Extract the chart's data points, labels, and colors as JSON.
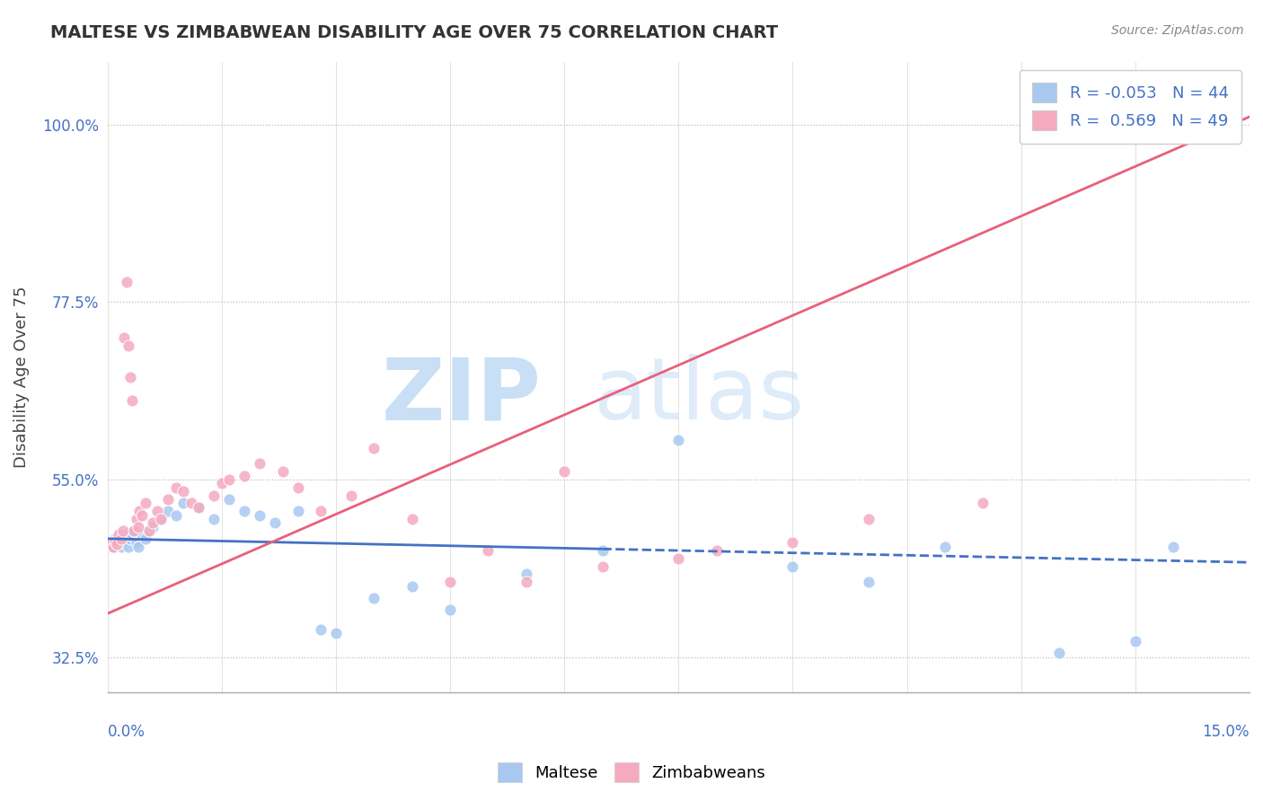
{
  "title": "MALTESE VS ZIMBABWEAN DISABILITY AGE OVER 75 CORRELATION CHART",
  "source": "Source: ZipAtlas.com",
  "ylabel": "Disability Age Over 75",
  "xlim": [
    0.0,
    15.0
  ],
  "ylim": [
    28.0,
    108.0
  ],
  "yticks": [
    32.5,
    55.0,
    77.5,
    100.0
  ],
  "ytick_labels": [
    "32.5%",
    "55.0%",
    "77.5%",
    "100.0%"
  ],
  "legend_r_maltese": "-0.053",
  "legend_n_maltese": "44",
  "legend_r_zimbabwean": "0.569",
  "legend_n_zimbabwean": "49",
  "maltese_color": "#a8c8f0",
  "zimbabwean_color": "#f5aac0",
  "trend_maltese_color": "#4472c4",
  "trend_zimbabwean_color": "#e8607a",
  "maltese_x": [
    0.05,
    0.08,
    0.1,
    0.12,
    0.15,
    0.18,
    0.2,
    0.22,
    0.25,
    0.28,
    0.3,
    0.32,
    0.35,
    0.38,
    0.4,
    0.45,
    0.5,
    0.55,
    0.6,
    0.7,
    0.8,
    0.9,
    1.0,
    1.2,
    1.4,
    1.6,
    1.8,
    2.0,
    2.2,
    2.5,
    2.8,
    3.0,
    3.5,
    4.0,
    4.5,
    5.5,
    6.5,
    7.5,
    9.0,
    10.0,
    11.0,
    12.5,
    13.5,
    14.0
  ],
  "maltese_y": [
    47.0,
    46.5,
    47.5,
    46.8,
    47.2,
    46.5,
    47.0,
    47.3,
    48.0,
    46.5,
    47.5,
    47.8,
    48.5,
    47.0,
    46.5,
    48.0,
    47.5,
    48.5,
    49.0,
    50.0,
    51.0,
    50.5,
    52.0,
    51.5,
    50.0,
    52.5,
    51.0,
    50.5,
    49.5,
    51.0,
    36.0,
    35.5,
    40.0,
    41.5,
    38.5,
    43.0,
    46.0,
    60.0,
    44.0,
    42.0,
    46.5,
    33.0,
    34.5,
    46.5
  ],
  "zimbabwean_x": [
    0.05,
    0.08,
    0.1,
    0.12,
    0.15,
    0.18,
    0.2,
    0.22,
    0.25,
    0.28,
    0.3,
    0.32,
    0.35,
    0.38,
    0.4,
    0.42,
    0.45,
    0.5,
    0.55,
    0.6,
    0.65,
    0.7,
    0.8,
    0.9,
    1.0,
    1.1,
    1.2,
    1.4,
    1.5,
    1.6,
    1.8,
    2.0,
    2.3,
    2.5,
    2.8,
    3.2,
    3.5,
    4.0,
    4.5,
    5.0,
    5.5,
    6.0,
    6.5,
    7.5,
    8.0,
    9.0,
    10.0,
    11.5,
    12.5
  ],
  "zimbabwean_y": [
    47.0,
    46.5,
    47.2,
    46.8,
    48.0,
    47.5,
    48.5,
    73.0,
    80.0,
    72.0,
    68.0,
    65.0,
    48.5,
    50.0,
    49.0,
    51.0,
    50.5,
    52.0,
    48.5,
    49.5,
    51.0,
    50.0,
    52.5,
    54.0,
    53.5,
    52.0,
    51.5,
    53.0,
    54.5,
    55.0,
    55.5,
    57.0,
    56.0,
    54.0,
    51.0,
    53.0,
    59.0,
    50.0,
    42.0,
    46.0,
    42.0,
    56.0,
    44.0,
    45.0,
    46.0,
    47.0,
    50.0,
    52.0,
    100.0
  ],
  "trend_maltese_x0": 0.0,
  "trend_maltese_y0": 47.5,
  "trend_maltese_x1": 15.0,
  "trend_maltese_y1": 44.5,
  "trend_maltese_solid_end": 6.5,
  "trend_zimbabwean_x0": 0.0,
  "trend_zimbabwean_y0": 38.0,
  "trend_zimbabwean_x1": 15.0,
  "trend_zimbabwean_y1": 101.0,
  "watermark_zip_color": "#c8dff5",
  "watermark_atlas_color": "#c8dff5"
}
